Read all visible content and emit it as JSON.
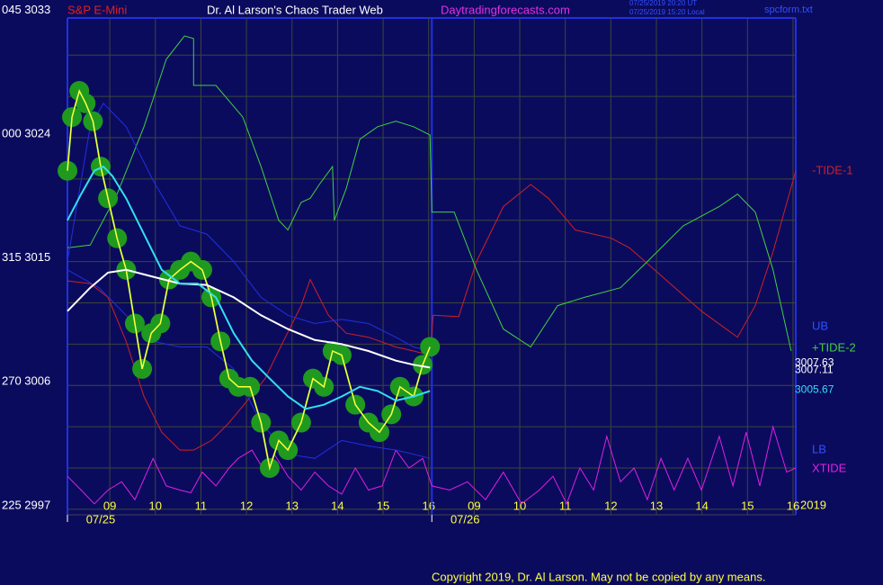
{
  "chart_data": {
    "type": "line",
    "instrument": "S&P E-Mini",
    "title": "Dr. Al Larson's Chaos Trader Web",
    "site": "Daytradingforecasts.com",
    "timestamps": [
      "07/25/2019 20:20 UT",
      "07/25/2019 15:20 Local"
    ],
    "file": "spcform.txt",
    "year": "2019",
    "copyright": "Copyright 2019, Dr. Al Larson. May not be copied by any means.",
    "xlim": [
      -0.93,
      15.06
    ],
    "ylim": [
      2996.6,
      3032.7
    ],
    "xticks": [
      {
        "value": 0,
        "label": "09"
      },
      {
        "value": 1,
        "label": "10"
      },
      {
        "value": 2,
        "label": "11"
      },
      {
        "value": 3,
        "label": "12"
      },
      {
        "value": 4,
        "label": "13"
      },
      {
        "value": 5,
        "label": "14"
      },
      {
        "value": 6,
        "label": "15"
      },
      {
        "value": 7,
        "label": "16"
      },
      {
        "value": 8,
        "label": "09"
      },
      {
        "value": 9,
        "label": "10"
      },
      {
        "value": 10,
        "label": "11"
      },
      {
        "value": 11,
        "label": "12"
      },
      {
        "value": 12,
        "label": "13"
      },
      {
        "value": 13,
        "label": "14"
      },
      {
        "value": 14,
        "label": "15"
      },
      {
        "value": 15,
        "label": "16"
      }
    ],
    "date_labels": [
      {
        "value": -0.2,
        "label": "07/25"
      },
      {
        "value": 7.8,
        "label": "07/26"
      }
    ],
    "day_divider": 7.07,
    "yticks": [
      {
        "value": 3033,
        "label": "045  3033"
      },
      {
        "value": 3024,
        "label": "000  3024"
      },
      {
        "value": 3015,
        "label": "315  3015"
      },
      {
        "value": 3006,
        "label": "270  3006"
      },
      {
        "value": 2997,
        "label": "225  2997"
      }
    ],
    "ygrid": [
      3030,
      3027,
      3024,
      3021,
      3018,
      3015,
      3012,
      3009,
      3006,
      3003,
      3000,
      2997
    ],
    "grid": true,
    "series": [
      {
        "name": "XTIDE",
        "color": "#e020e0",
        "x": [
          -0.93,
          -0.63,
          -0.34,
          -0.04,
          0.26,
          0.55,
          0.95,
          1.24,
          1.54,
          1.78,
          2.03,
          2.33,
          2.62,
          2.82,
          3.12,
          3.41,
          3.61,
          3.91,
          4.2,
          4.5,
          4.8,
          5.09,
          5.39,
          5.68,
          5.98,
          6.28,
          6.57,
          6.87,
          7.07,
          7.46,
          7.85,
          8.25,
          8.64,
          9.04,
          9.43,
          9.73,
          10.03,
          10.32,
          10.62,
          10.91,
          11.21,
          11.51,
          11.8,
          12.1,
          12.39,
          12.69,
          12.99,
          13.38,
          13.68,
          13.97,
          14.27,
          14.56,
          14.86,
          15.06
        ],
        "values": [
          2999.4,
          2998.4,
          2997.4,
          2998.4,
          2999.0,
          2997.7,
          3000.7,
          2998.7,
          2998.4,
          2998.2,
          2999.7,
          2998.7,
          3000.0,
          3000.7,
          3001.3,
          2999.7,
          3001.0,
          2999.4,
          2998.4,
          2999.7,
          2998.7,
          2998.1,
          3000.0,
          2998.4,
          2998.7,
          3001.3,
          3000.0,
          3000.7,
          2998.7,
          2998.4,
          2999.0,
          2997.7,
          2999.7,
          2997.4,
          2998.4,
          2999.4,
          2997.4,
          3000.0,
          2998.4,
          3002.3,
          2999.0,
          3000.0,
          2997.7,
          3000.7,
          2998.4,
          3000.7,
          2998.4,
          3002.3,
          2998.7,
          3002.6,
          2998.7,
          3003.0,
          2999.7,
          3000.0
        ]
      },
      {
        "name": "-TIDE-1",
        "color": "#d02020",
        "x": [
          -0.93,
          -0.43,
          -0.04,
          0.36,
          0.75,
          1.14,
          1.54,
          1.84,
          2.23,
          2.62,
          3.02,
          3.41,
          3.81,
          4.2,
          4.4,
          4.6,
          4.8,
          5.19,
          5.68,
          6.28,
          6.67,
          7.03,
          7.1,
          7.66,
          8.05,
          8.64,
          9.24,
          9.63,
          10.22,
          11.01,
          11.41,
          12.2,
          12.99,
          13.78,
          14.17,
          14.56,
          15.06
        ],
        "values": [
          3013.6,
          3013.4,
          3012.4,
          3009.2,
          3005.2,
          3002.6,
          3001.3,
          3001.3,
          3002.0,
          3003.3,
          3004.9,
          3006.5,
          3009.2,
          3011.8,
          3013.7,
          3012.4,
          3011.1,
          3009.8,
          3009.5,
          3008.8,
          3008.5,
          3008.2,
          3011.1,
          3011.0,
          3015.0,
          3019.0,
          3020.6,
          3019.6,
          3017.3,
          3016.7,
          3016.0,
          3013.7,
          3011.4,
          3009.5,
          3011.8,
          3015.7,
          3021.6
        ]
      },
      {
        "name": "+TIDE-2",
        "color": "#40d040",
        "x": [
          -0.93,
          -0.43,
          0.16,
          0.75,
          1.24,
          1.64,
          1.84,
          1.84,
          2.33,
          2.92,
          3.32,
          3.71,
          3.91,
          4.2,
          4.4,
          4.6,
          4.89,
          4.93,
          5.19,
          5.49,
          5.88,
          6.28,
          6.67,
          7.03,
          7.07,
          7.56,
          8.05,
          8.64,
          9.24,
          9.83,
          10.42,
          11.21,
          11.8,
          12.59,
          13.38,
          13.78,
          14.17,
          14.56,
          14.96
        ],
        "values": [
          3016.0,
          3016.2,
          3019.9,
          3024.8,
          3029.7,
          3031.4,
          3031.2,
          3027.8,
          3027.8,
          3025.5,
          3021.9,
          3018.0,
          3017.3,
          3019.3,
          3019.6,
          3020.6,
          3021.9,
          3018.0,
          3020.3,
          3023.9,
          3024.8,
          3025.2,
          3024.8,
          3024.2,
          3018.6,
          3018.6,
          3014.4,
          3010.1,
          3008.8,
          3011.8,
          3012.4,
          3013.1,
          3015.0,
          3017.6,
          3019.0,
          3019.9,
          3018.6,
          3014.4,
          3008.5
        ]
      },
      {
        "name": "UB",
        "color": "#2030e0",
        "x": [
          -0.93,
          -0.43,
          -0.14,
          0.36,
          0.95,
          1.54,
          2.13,
          2.72,
          3.32,
          3.91,
          4.5,
          5.09,
          5.68,
          6.28,
          6.67,
          7.03
        ],
        "values": [
          3015.0,
          3024.8,
          3026.5,
          3024.8,
          3020.9,
          3017.6,
          3017.0,
          3015.0,
          3012.4,
          3011.1,
          3010.5,
          3010.8,
          3010.5,
          3009.5,
          3008.8,
          3008.5
        ]
      },
      {
        "name": "LB",
        "color": "#2030e0",
        "x": [
          -0.93,
          -0.24,
          0.36,
          0.95,
          1.54,
          2.13,
          2.72,
          3.32,
          3.91,
          4.5,
          5.09,
          5.68,
          6.28,
          6.67,
          7.03
        ],
        "values": [
          3014.4,
          3013.1,
          3011.1,
          3009.2,
          3008.8,
          3008.8,
          3007.2,
          3003.3,
          3001.0,
          3000.7,
          3002.0,
          3001.6,
          3001.3,
          3001.0,
          3000.7
        ]
      },
      {
        "color": "#22a022",
        "marker_color": "#1f9a1f",
        "width": 2,
        "x": [
          -0.93,
          -0.83,
          -0.67,
          -0.53,
          -0.37,
          -0.2,
          -0.04,
          0.16,
          0.36,
          0.55,
          0.71,
          0.91,
          1.11,
          1.3,
          1.54,
          1.78,
          2.03,
          2.23,
          2.43,
          2.62,
          2.82,
          3.08,
          3.32,
          3.51,
          3.71,
          3.91,
          4.2,
          4.46,
          4.7,
          4.89,
          5.09,
          5.39,
          5.68,
          5.92,
          6.18,
          6.37,
          6.67,
          6.87,
          7.03
        ],
        "values": [
          3021.6,
          3025.5,
          3027.4,
          3026.5,
          3025.2,
          3021.9,
          3019.6,
          3016.7,
          3014.4,
          3010.5,
          3007.2,
          3009.8,
          3010.5,
          3013.7,
          3014.4,
          3015.0,
          3014.4,
          3012.4,
          3009.2,
          3006.5,
          3005.9,
          3005.9,
          3003.3,
          3000.0,
          3002.0,
          3001.3,
          3003.3,
          3006.5,
          3005.9,
          3008.5,
          3008.2,
          3004.6,
          3003.3,
          3002.6,
          3003.9,
          3005.9,
          3005.2,
          3007.5,
          3008.8
        ]
      },
      {
        "color": "#ffffff",
        "width": 2,
        "x": [
          -0.93,
          -0.43,
          -0.04,
          0.36,
          0.95,
          1.54,
          2.13,
          2.72,
          3.32,
          3.91,
          4.5,
          5.09,
          5.68,
          6.28,
          6.67,
          7.03
        ],
        "values": [
          3011.4,
          3013.1,
          3014.2,
          3014.4,
          3013.9,
          3013.4,
          3013.3,
          3012.4,
          3011.1,
          3010.1,
          3009.3,
          3009.0,
          3008.5,
          3007.8,
          3007.5,
          3007.3
        ]
      },
      {
        "color": "#30e0f0",
        "width": 2,
        "x": [
          -0.93,
          -0.63,
          -0.34,
          -0.14,
          0.06,
          0.36,
          0.75,
          1.14,
          1.54,
          1.93,
          2.33,
          2.72,
          3.12,
          3.51,
          3.91,
          4.3,
          4.7,
          5.09,
          5.49,
          5.88,
          6.28,
          6.67,
          7.03
        ],
        "values": [
          3018.0,
          3019.9,
          3021.6,
          3021.9,
          3021.2,
          3019.6,
          3017.0,
          3014.4,
          3013.4,
          3013.4,
          3012.4,
          3009.8,
          3007.8,
          3006.5,
          3005.2,
          3004.3,
          3004.6,
          3005.2,
          3005.9,
          3005.6,
          3004.9,
          3005.2,
          3005.6
        ]
      }
    ],
    "right_values": [
      {
        "value": 3007.63,
        "color": "#ffffff"
      },
      {
        "value": 3007.11,
        "color": "#ffffff"
      },
      {
        "value": 3005.67,
        "color": "#30e0f0"
      }
    ]
  }
}
